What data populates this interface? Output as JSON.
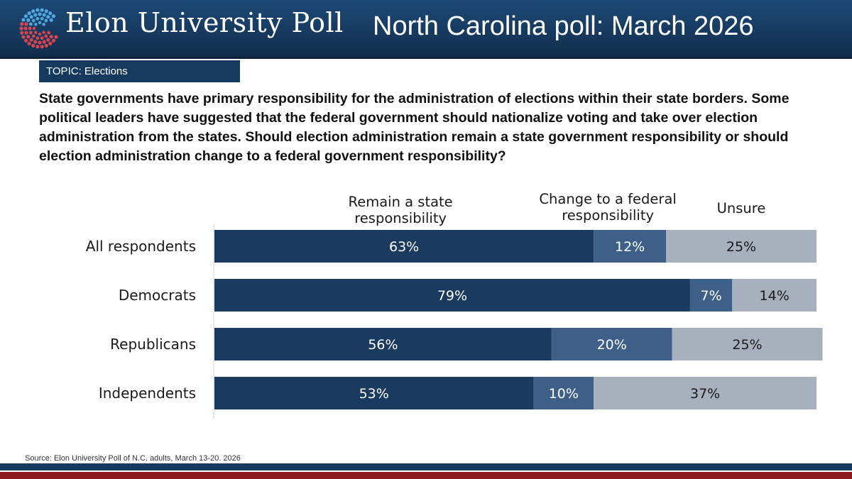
{
  "header": {
    "org_name": "Elon University Poll",
    "title": "North Carolina poll: March 2026"
  },
  "topic_label": "TOPIC: Elections",
  "question": "State governments have primary responsibility for the administration of elections within their state borders. Some political leaders have suggested that the federal government should nationalize voting and take over election administration from the states. Should election administration remain a state government responsibility or should election administration change to a federal government responsibility?",
  "source": "Source: Elon University Poll of N.C. adults, March 13-20. 2026",
  "colors": {
    "header_navy": "#16395e",
    "footer_red": "#8a1b1f"
  },
  "chart_data": {
    "type": "bar",
    "orientation": "horizontal",
    "stacked": true,
    "categories": [
      "All respondents",
      "Democrats",
      "Republicans",
      "Independents"
    ],
    "series": [
      {
        "name": "Remain a state responsibility",
        "values": [
          63,
          79,
          56,
          53
        ],
        "labels": [
          "63%",
          "79%",
          "56%",
          "53%"
        ],
        "color": "#1b3a5f",
        "label_color": "#ffffff"
      },
      {
        "name": "Change to a federal responsibility",
        "values": [
          12,
          7,
          20,
          10
        ],
        "labels": [
          "12%",
          "7%",
          "20%",
          "10%"
        ],
        "color": "#3e6088",
        "label_color": "#ffffff"
      },
      {
        "name": "Unsure",
        "values": [
          25,
          14,
          25,
          37
        ],
        "labels": [
          "25%",
          "14%",
          "25%",
          "37%"
        ],
        "color": "#a6b1bd",
        "label_color": "#1a1a1a"
      }
    ],
    "xlim": [
      0,
      100
    ],
    "grid": false,
    "legend_position": "top"
  }
}
